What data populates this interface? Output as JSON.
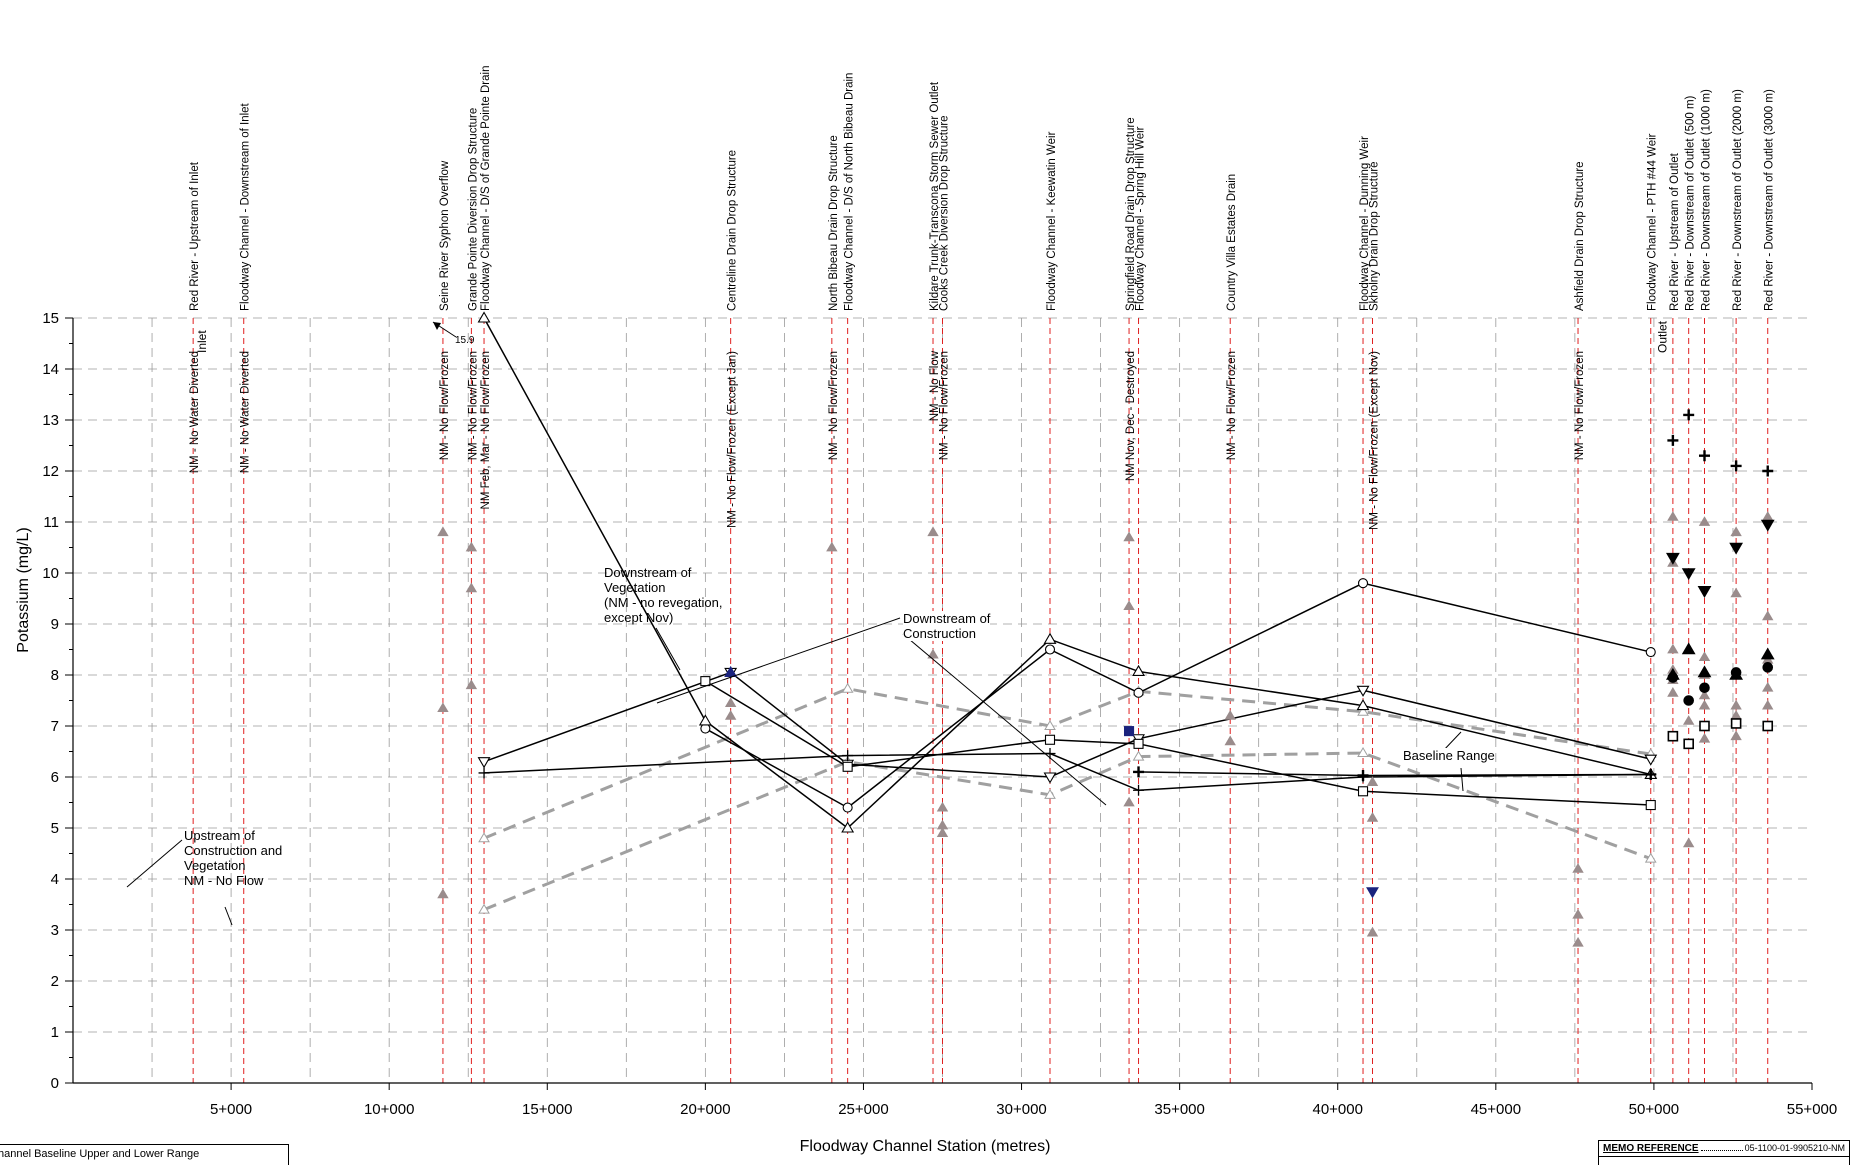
{
  "chart_data": {
    "type": "line",
    "xlabel": "Floodway Channel Station (metres)",
    "ylabel": "Potassium (mg/L)",
    "xlim": [
      0,
      55000
    ],
    "ylim": [
      0,
      15
    ],
    "xticks": [
      5000,
      10000,
      15000,
      20000,
      25000,
      30000,
      35000,
      40000,
      45000,
      50000,
      55000
    ],
    "xtick_labels": [
      "5+000",
      "10+000",
      "15+000",
      "20+000",
      "25+000",
      "30+000",
      "35+000",
      "40+000",
      "45+000",
      "50+000",
      "55+000"
    ],
    "yticks": [
      0,
      1,
      2,
      3,
      4,
      5,
      6,
      7,
      8,
      9,
      10,
      11,
      12,
      13,
      14,
      15
    ],
    "grid": true,
    "sites": [
      {
        "x": 3800,
        "label": "Red River - Upstream of Inlet",
        "status": "NM - No Water Diverted"
      },
      {
        "x": 5400,
        "label": "Floodway Channel - Downstream of Inlet",
        "status": "NM - No Water Diverted"
      },
      {
        "x": 11700,
        "label": "Seine River Syphon Overflow",
        "status": "NM - No Flow/Frozen"
      },
      {
        "x": 12600,
        "label": "Grande Pointe Diversion Drop Structure",
        "status": "NM - No Flow/Frozen"
      },
      {
        "x": 13000,
        "label": "Floodway Channel - D/S of Grande Pointe Drain",
        "status": "NM Feb, Mar - No Flow/Frozen"
      },
      {
        "x": 20800,
        "label": "Centreline Drain Drop Structure",
        "status": "NM - No Flow/Frozen (Except Jan)"
      },
      {
        "x": 24000,
        "label": "North Bibeau Drain Drop Structure",
        "status": "NM - No Flow/Frozen"
      },
      {
        "x": 24500,
        "label": "Floodway Channel - D/S of North Bibeau Drain",
        "status": ""
      },
      {
        "x": 27200,
        "label": "Kildare Trunk-Transcona Storm Sewer Outlet",
        "status": "NM - No Flow"
      },
      {
        "x": 27500,
        "label": "Cooks Creek Diversion Drop Structure",
        "status": "NM - No Flow/Frozen"
      },
      {
        "x": 30900,
        "label": "Floodway Channel - Keewatin Weir",
        "status": ""
      },
      {
        "x": 33400,
        "label": "Springfield Road Drain Drop Structure",
        "status": "NM Nov, Dec - Destroyed"
      },
      {
        "x": 33700,
        "label": "Floodway Channel - Spring Hill Weir",
        "status": ""
      },
      {
        "x": 36600,
        "label": "Country Villa Estates Drain",
        "status": "NM - No Flow/Frozen"
      },
      {
        "x": 40800,
        "label": "Floodway Channel - Dunning Weir",
        "status": ""
      },
      {
        "x": 41100,
        "label": "Skholny Drain Drop Structure",
        "status": "NM - No Flow/Frozen (Except Nov)"
      },
      {
        "x": 47600,
        "label": "Ashfield Drain Drop Structure",
        "status": "NM - No Flow/Frozen"
      },
      {
        "x": 49900,
        "label": "Floodway Channel - PTH #44 Weir",
        "status": ""
      },
      {
        "x": 50600,
        "label": "Red River - Upstream of Outlet",
        "status": ""
      },
      {
        "x": 51100,
        "label": "Red River - Downstream of Outlet (500 m)",
        "status": ""
      },
      {
        "x": 51600,
        "label": "Red River - Downstream of Outlet (1000 m)",
        "status": ""
      },
      {
        "x": 52600,
        "label": "Red River - Downstream of Outlet (2000 m)",
        "status": ""
      },
      {
        "x": 53600,
        "label": "Red River - Downstream of Outlet (3000 m)",
        "status": ""
      }
    ],
    "structure_labels": [
      {
        "x": 4200,
        "text": "Inlet"
      },
      {
        "x": 50400,
        "text": "Outlet"
      }
    ],
    "series": [
      {
        "marker": "circle",
        "points": [
          [
            20000,
            6.95
          ],
          [
            24500,
            5.4
          ],
          [
            30900,
            8.5
          ],
          [
            33700,
            7.65
          ],
          [
            40800,
            9.8
          ],
          [
            49900,
            8.45
          ]
        ]
      },
      {
        "marker": "triangle-up",
        "points": [
          [
            13000,
            15.0
          ],
          [
            20000,
            7.1
          ],
          [
            24500,
            5.0
          ],
          [
            30900,
            8.7
          ],
          [
            33700,
            8.07
          ],
          [
            40800,
            7.4
          ],
          [
            49900,
            6.05
          ]
        ]
      },
      {
        "marker": "triangle-down",
        "points": [
          [
            13000,
            6.3
          ],
          [
            20800,
            8.05
          ],
          [
            24500,
            6.25
          ],
          [
            30900,
            6.0
          ],
          [
            33700,
            6.75
          ],
          [
            40800,
            7.7
          ],
          [
            49900,
            6.35
          ]
        ]
      },
      {
        "marker": "square",
        "points": [
          [
            20000,
            7.88
          ],
          [
            24500,
            6.2
          ],
          [
            30900,
            6.73
          ],
          [
            33700,
            6.65
          ],
          [
            40800,
            5.72
          ],
          [
            49900,
            5.45
          ]
        ]
      },
      {
        "marker": "cross",
        "points": [
          [
            13000,
            6.08
          ],
          [
            24500,
            6.42
          ],
          [
            30900,
            6.46
          ],
          [
            33700,
            5.74
          ],
          [
            40800,
            6.0
          ],
          [
            49900,
            6.05
          ]
        ]
      },
      {
        "marker": "cross-bold",
        "points": [
          [
            33700,
            6.1
          ],
          [
            40800,
            6.03
          ],
          [
            49900,
            6.05
          ]
        ]
      }
    ],
    "baseline_range": {
      "upper": [
        [
          13000,
          4.8
        ],
        [
          24500,
          7.73
        ],
        [
          30900,
          7.0
        ],
        [
          33700,
          7.68
        ],
        [
          40800,
          7.28
        ],
        [
          49900,
          6.45
        ]
      ],
      "lower": [
        [
          13000,
          3.4
        ],
        [
          24500,
          6.3
        ],
        [
          30900,
          5.65
        ],
        [
          33700,
          6.4
        ],
        [
          40800,
          6.47
        ],
        [
          49900,
          4.4
        ]
      ]
    },
    "baseline_points": [
      [
        11700,
        10.8
      ],
      [
        11700,
        7.35
      ],
      [
        11700,
        3.7
      ],
      [
        12600,
        10.5
      ],
      [
        12600,
        9.7
      ],
      [
        12600,
        7.8
      ],
      [
        20800,
        7.45
      ],
      [
        20800,
        7.2
      ],
      [
        24000,
        10.5
      ],
      [
        27200,
        10.8
      ],
      [
        27200,
        8.4
      ],
      [
        27500,
        5.4
      ],
      [
        27500,
        5.05
      ],
      [
        27500,
        4.9
      ],
      [
        33400,
        10.7
      ],
      [
        33400,
        9.35
      ],
      [
        33400,
        5.5
      ],
      [
        36600,
        7.2
      ],
      [
        36600,
        6.7
      ],
      [
        41100,
        5.9
      ],
      [
        41100,
        5.2
      ],
      [
        41100,
        2.95
      ],
      [
        47600,
        4.2
      ],
      [
        47600,
        3.3
      ],
      [
        47600,
        2.75
      ],
      [
        50600,
        11.1
      ],
      [
        50600,
        10.2
      ],
      [
        50600,
        8.5
      ],
      [
        50600,
        8.1
      ],
      [
        50600,
        7.9
      ],
      [
        50600,
        7.65
      ],
      [
        51100,
        7.1
      ],
      [
        51100,
        4.7
      ],
      [
        51600,
        11.0
      ],
      [
        51600,
        8.35
      ],
      [
        51600,
        8.0
      ],
      [
        51600,
        7.6
      ],
      [
        51600,
        7.4
      ],
      [
        51600,
        6.75
      ],
      [
        52600,
        10.8
      ],
      [
        52600,
        9.6
      ],
      [
        52600,
        7.4
      ],
      [
        52600,
        7.2
      ],
      [
        52600,
        6.8
      ],
      [
        53600,
        11.1
      ],
      [
        53600,
        9.15
      ],
      [
        53600,
        8.3
      ],
      [
        53600,
        7.75
      ],
      [
        53600,
        7.4
      ]
    ],
    "highlight_points": [
      {
        "x": 20800,
        "y": 8.05,
        "marker": "triangle-up"
      },
      {
        "x": 33400,
        "y": 6.9,
        "marker": "square"
      },
      {
        "x": 41100,
        "y": 3.75,
        "marker": "triangle-down"
      }
    ],
    "river_points": [
      {
        "x": 50600,
        "y": 12.6,
        "marker": "cross-bold"
      },
      {
        "x": 50600,
        "y": 10.3,
        "marker": "triangle-down"
      },
      {
        "x": 50600,
        "y": 8.0,
        "marker": "triangle-up"
      },
      {
        "x": 50600,
        "y": 7.95,
        "marker": "circle"
      },
      {
        "x": 50600,
        "y": 6.8,
        "marker": "square"
      },
      {
        "x": 51100,
        "y": 13.1,
        "marker": "cross-bold"
      },
      {
        "x": 51100,
        "y": 10.0,
        "marker": "triangle-down"
      },
      {
        "x": 51100,
        "y": 8.5,
        "marker": "triangle-up"
      },
      {
        "x": 51100,
        "y": 7.5,
        "marker": "circle"
      },
      {
        "x": 51100,
        "y": 6.65,
        "marker": "square"
      },
      {
        "x": 51600,
        "y": 12.3,
        "marker": "cross-bold"
      },
      {
        "x": 51600,
        "y": 9.65,
        "marker": "triangle-down"
      },
      {
        "x": 51600,
        "y": 8.05,
        "marker": "triangle-up"
      },
      {
        "x": 51600,
        "y": 7.75,
        "marker": "circle"
      },
      {
        "x": 51600,
        "y": 7.0,
        "marker": "square"
      },
      {
        "x": 52600,
        "y": 12.1,
        "marker": "cross-bold"
      },
      {
        "x": 52600,
        "y": 10.5,
        "marker": "triangle-down"
      },
      {
        "x": 52600,
        "y": 8.05,
        "marker": "circle"
      },
      {
        "x": 52600,
        "y": 8.0,
        "marker": "triangle-up"
      },
      {
        "x": 52600,
        "y": 7.05,
        "marker": "square"
      },
      {
        "x": 53600,
        "y": 12.0,
        "marker": "cross-bold"
      },
      {
        "x": 53600,
        "y": 10.95,
        "marker": "triangle-down"
      },
      {
        "x": 53600,
        "y": 8.4,
        "marker": "triangle-up"
      },
      {
        "x": 53600,
        "y": 8.15,
        "marker": "circle"
      },
      {
        "x": 53600,
        "y": 7.0,
        "marker": "square"
      }
    ],
    "annotations": [
      {
        "text": "15.9"
      },
      {
        "text": "Downstream of Vegetation (NM - no revegation, except Nov)"
      },
      {
        "text": "Downstream of Construction"
      },
      {
        "text": "Baseline Range"
      },
      {
        "text": "Upstream of Construction and Vegetation NM - No Flow"
      }
    ]
  },
  "notes": {
    "value_15_9": "15.9",
    "veg_1": "Downstream of",
    "veg_2": "Vegetation",
    "veg_3": "(NM - no revegation,",
    "veg_4": "except Nov)",
    "cons_1": "Downstream of",
    "cons_2": "Construction",
    "baseline": "Baseline Range",
    "up_1": "Upstream of",
    "up_2": "Construction and",
    "up_3": "Vegetation",
    "up_4": "NM - No Flow"
  },
  "footer": {
    "legend_line_1": "hannel Baseline Upper and Lower Range",
    "legend_line_2": "(fragment, partially cut off)",
    "memo_label": "MEMO REFERENCE",
    "memo_value": "05-1100-01-9905210-NM"
  },
  "colors": {
    "site_line": "#e02020",
    "grid": "#9a9a9a",
    "baseline": "#a0a0a0",
    "baseline_marker": "#9a8c8c",
    "highlight": "#1a237e",
    "series": "#000000"
  }
}
